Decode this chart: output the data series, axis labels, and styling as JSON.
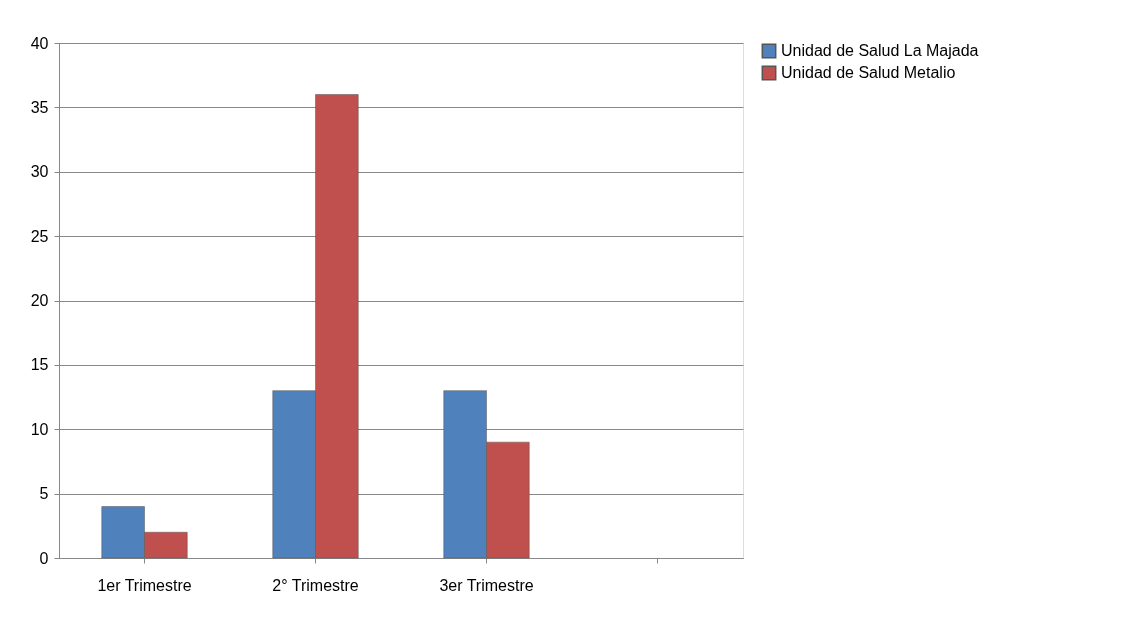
{
  "chart_data": {
    "type": "bar",
    "categories": [
      "1er Trimestre",
      "2° Trimestre",
      "3er Trimestre",
      null
    ],
    "series": [
      {
        "name": "Unidad de Salud La Majada",
        "color": "#4f81bd",
        "values": [
          4,
          13,
          13,
          null
        ]
      },
      {
        "name": "Unidad de Salud Metalio",
        "color": "#c0504d",
        "values": [
          2,
          36,
          9,
          null
        ]
      }
    ],
    "ylim": [
      0,
      40
    ],
    "yticks": [
      0,
      5,
      10,
      15,
      20,
      25,
      30,
      35,
      40
    ],
    "grid": "y",
    "legend": "right"
  }
}
